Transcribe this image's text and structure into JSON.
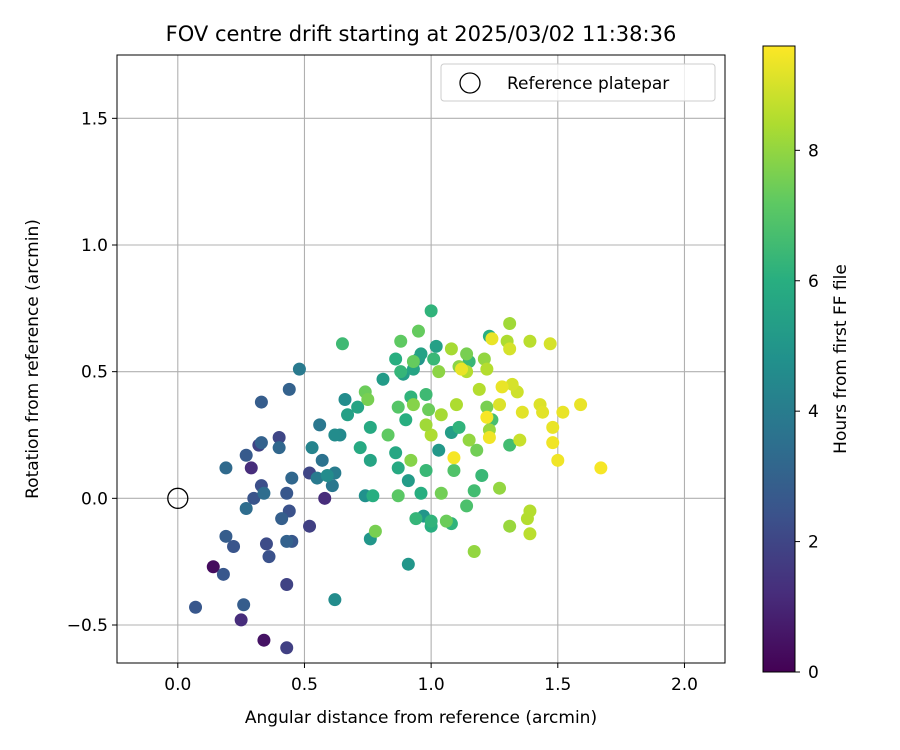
{
  "chart_data": {
    "type": "scatter",
    "title": "FOV centre drift starting at 2025/03/02 11:38:36",
    "xlabel": "Angular distance from reference (arcmin)",
    "ylabel": "Rotation from reference (arcmin)",
    "xlim": [
      -0.24,
      2.16
    ],
    "ylim": [
      -0.65,
      1.75
    ],
    "xticks": [
      0.0,
      0.5,
      1.0,
      1.5,
      2.0
    ],
    "xtick_labels": [
      "0.0",
      "0.5",
      "1.0",
      "1.5",
      "2.0"
    ],
    "yticks": [
      -0.5,
      0.0,
      0.5,
      1.0,
      1.5
    ],
    "ytick_labels": [
      "−0.5",
      "0.0",
      "0.5",
      "1.0",
      "1.5"
    ],
    "grid": true,
    "legend": {
      "placement": "top-right",
      "entries": [
        "Reference platepar"
      ]
    },
    "reference_point": {
      "x": 0.0,
      "y": 0.0,
      "label": "Reference platepar"
    },
    "colorbar": {
      "label": "Hours from first FF file",
      "colormap": "viridis",
      "range": [
        0,
        9.6
      ],
      "ticks": [
        0,
        2,
        4,
        6,
        8
      ],
      "tick_labels": [
        "0",
        "2",
        "4",
        "6",
        "8"
      ]
    },
    "points": [
      [
        0.14,
        -0.27,
        0.3
      ],
      [
        0.34,
        -0.56,
        0.5
      ],
      [
        0.43,
        -0.59,
        1.8
      ],
      [
        0.25,
        -0.48,
        1.2
      ],
      [
        0.58,
        0.0,
        1.2
      ],
      [
        0.29,
        0.12,
        1.2
      ],
      [
        0.52,
        -0.11,
        1.8
      ],
      [
        0.52,
        0.1,
        2.0
      ],
      [
        0.32,
        0.21,
        1.9
      ],
      [
        0.4,
        0.24,
        2.0
      ],
      [
        0.35,
        -0.18,
        2.2
      ],
      [
        0.36,
        -0.23,
        2.4
      ],
      [
        0.43,
        -0.34,
        1.9
      ],
      [
        0.07,
        -0.43,
        2.6
      ],
      [
        0.18,
        -0.3,
        2.6
      ],
      [
        0.22,
        -0.19,
        2.5
      ],
      [
        0.19,
        -0.15,
        2.8
      ],
      [
        0.26,
        -0.42,
        2.8
      ],
      [
        0.3,
        0.0,
        2.5
      ],
      [
        0.33,
        0.05,
        2.3
      ],
      [
        0.27,
        0.17,
        2.7
      ],
      [
        0.33,
        0.38,
        2.8
      ],
      [
        0.44,
        0.43,
        3.0
      ],
      [
        0.43,
        0.02,
        2.6
      ],
      [
        0.44,
        -0.05,
        2.4
      ],
      [
        0.41,
        -0.08,
        2.9
      ],
      [
        0.45,
        -0.17,
        2.6
      ],
      [
        0.43,
        -0.17,
        3.0
      ],
      [
        0.33,
        0.22,
        3.0
      ],
      [
        0.4,
        0.2,
        3.2
      ],
      [
        0.45,
        0.08,
        3.2
      ],
      [
        0.19,
        0.12,
        3.3
      ],
      [
        0.27,
        -0.04,
        3.4
      ],
      [
        0.34,
        0.02,
        3.4
      ],
      [
        0.57,
        0.15,
        3.6
      ],
      [
        0.48,
        0.51,
        3.9
      ],
      [
        0.56,
        0.29,
        3.8
      ],
      [
        0.55,
        0.08,
        3.9
      ],
      [
        0.61,
        0.05,
        3.8
      ],
      [
        0.62,
        0.1,
        4.0
      ],
      [
        0.53,
        0.2,
        4.3
      ],
      [
        0.62,
        -0.4,
        4.6
      ],
      [
        0.66,
        0.39,
        4.6
      ],
      [
        0.64,
        0.25,
        4.5
      ],
      [
        0.62,
        0.25,
        4.6
      ],
      [
        0.59,
        0.09,
        4.6
      ],
      [
        0.74,
        0.01,
        4.8
      ],
      [
        0.76,
        -0.16,
        5.0
      ],
      [
        0.81,
        0.47,
        5.2
      ],
      [
        0.89,
        0.49,
        5.3
      ],
      [
        0.95,
        0.55,
        5.0
      ],
      [
        0.91,
        0.07,
        5.2
      ],
      [
        0.97,
        -0.07,
        5.0
      ],
      [
        0.91,
        -0.26,
        5.0
      ],
      [
        1.03,
        0.19,
        5.1
      ],
      [
        0.93,
        0.51,
        5.6
      ],
      [
        0.96,
        0.57,
        5.5
      ],
      [
        1.02,
        0.6,
        5.4
      ],
      [
        1.08,
        0.26,
        5.3
      ],
      [
        0.71,
        0.36,
        5.6
      ],
      [
        0.67,
        0.33,
        5.4
      ],
      [
        0.72,
        0.2,
        5.8
      ],
      [
        0.76,
        0.28,
        5.8
      ],
      [
        0.76,
        0.15,
        5.6
      ],
      [
        0.77,
        0.01,
        6.0
      ],
      [
        0.86,
        0.18,
        5.7
      ],
      [
        0.87,
        0.12,
        5.8
      ],
      [
        0.9,
        0.31,
        6.0
      ],
      [
        0.92,
        0.4,
        6.2
      ],
      [
        0.96,
        0.02,
        6.0
      ],
      [
        0.94,
        -0.08,
        6.3
      ],
      [
        0.98,
        0.11,
        6.4
      ],
      [
        1.0,
        -0.11,
        6.0
      ],
      [
        1.0,
        -0.09,
        6.2
      ],
      [
        1.08,
        -0.1,
        6.2
      ],
      [
        1.0,
        0.74,
        6.2
      ],
      [
        0.86,
        0.55,
        6.0
      ],
      [
        0.88,
        0.5,
        6.3
      ],
      [
        0.98,
        0.41,
        6.5
      ],
      [
        1.01,
        0.55,
        6.4
      ],
      [
        1.11,
        0.28,
        6.2
      ],
      [
        1.2,
        0.09,
        6.4
      ],
      [
        1.23,
        0.64,
        6.0
      ],
      [
        1.15,
        0.54,
        6.4
      ],
      [
        1.17,
        0.03,
        6.6
      ],
      [
        1.24,
        0.31,
        6.7
      ],
      [
        1.31,
        0.21,
        6.6
      ],
      [
        0.65,
        0.61,
        6.5
      ],
      [
        1.14,
        -0.03,
        6.8
      ],
      [
        1.09,
        0.11,
        6.9
      ],
      [
        0.87,
        0.36,
        7.0
      ],
      [
        0.88,
        0.62,
        7.2
      ],
      [
        0.87,
        0.01,
        7.1
      ],
      [
        0.83,
        0.25,
        7.2
      ],
      [
        0.93,
        0.54,
        7.3
      ],
      [
        0.95,
        0.66,
        7.3
      ],
      [
        0.99,
        0.35,
        7.4
      ],
      [
        1.04,
        0.02,
        7.5
      ],
      [
        1.06,
        -0.09,
        7.4
      ],
      [
        1.14,
        0.57,
        7.6
      ],
      [
        1.18,
        0.19,
        7.5
      ],
      [
        1.22,
        0.36,
        7.6
      ],
      [
        0.74,
        0.42,
        7.4
      ],
      [
        0.75,
        0.39,
        7.6
      ],
      [
        0.78,
        -0.13,
        7.6
      ],
      [
        0.92,
        0.15,
        7.8
      ],
      [
        0.93,
        0.37,
        7.8
      ],
      [
        1.03,
        0.5,
        7.9
      ],
      [
        1.11,
        0.52,
        7.9
      ],
      [
        1.15,
        0.23,
        8.0
      ],
      [
        1.17,
        -0.21,
        8.0
      ],
      [
        1.21,
        0.55,
        8.0
      ],
      [
        1.23,
        0.27,
        8.1
      ],
      [
        1.27,
        0.04,
        8.0
      ],
      [
        1.31,
        -0.11,
        8.1
      ],
      [
        1.31,
        0.69,
        8.2
      ],
      [
        1.08,
        0.59,
        8.3
      ],
      [
        1.1,
        0.37,
        8.4
      ],
      [
        1.04,
        0.33,
        8.3
      ],
      [
        1.0,
        0.25,
        8.4
      ],
      [
        0.98,
        0.29,
        8.2
      ],
      [
        1.14,
        0.5,
        8.5
      ],
      [
        1.19,
        0.43,
        8.5
      ],
      [
        1.22,
        0.51,
        8.5
      ],
      [
        1.3,
        0.62,
        8.4
      ],
      [
        1.39,
        0.62,
        8.6
      ],
      [
        1.38,
        -0.08,
        8.5
      ],
      [
        1.39,
        -0.05,
        8.5
      ],
      [
        1.39,
        -0.14,
        8.6
      ],
      [
        1.35,
        0.23,
        8.8
      ],
      [
        1.34,
        0.42,
        8.9
      ],
      [
        1.32,
        0.45,
        9.0
      ],
      [
        1.27,
        0.37,
        9.1
      ],
      [
        1.28,
        0.44,
        9.3
      ],
      [
        1.24,
        0.63,
        9.3
      ],
      [
        1.31,
        0.59,
        9.0
      ],
      [
        1.36,
        0.34,
        9.2
      ],
      [
        1.43,
        0.37,
        9.1
      ],
      [
        1.44,
        0.34,
        9.2
      ],
      [
        1.47,
        0.61,
        9.0
      ],
      [
        1.48,
        0.28,
        9.3
      ],
      [
        1.48,
        0.22,
        9.4
      ],
      [
        1.5,
        0.15,
        9.4
      ],
      [
        1.52,
        0.34,
        9.3
      ],
      [
        1.59,
        0.37,
        9.3
      ],
      [
        1.67,
        0.12,
        9.5
      ],
      [
        1.23,
        0.24,
        9.4
      ],
      [
        1.22,
        0.32,
        9.5
      ],
      [
        1.09,
        0.16,
        9.5
      ],
      [
        1.12,
        0.51,
        9.3
      ]
    ]
  }
}
